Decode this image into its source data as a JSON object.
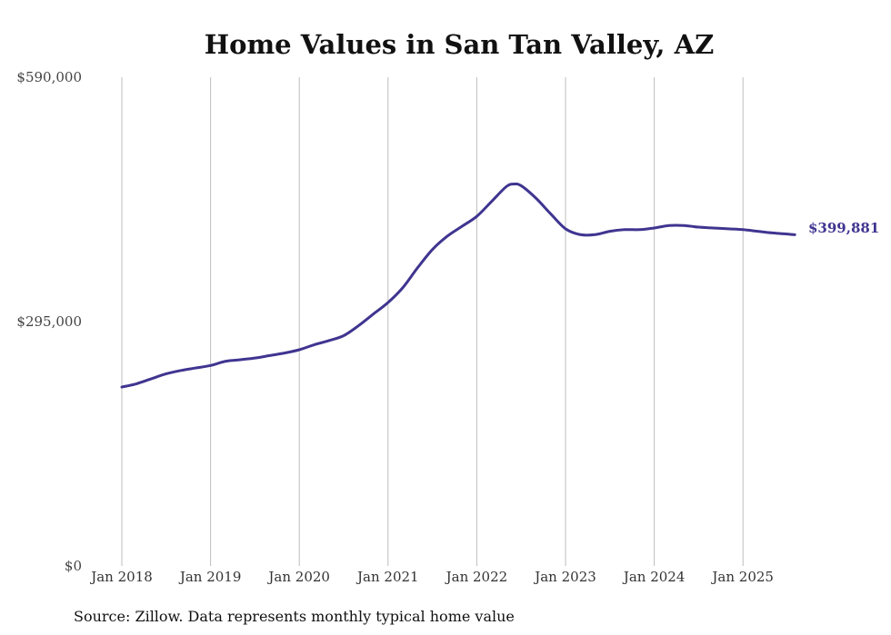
{
  "chart_data": {
    "type": "line",
    "title": "Home Values in San Tan Valley, AZ",
    "source": "Source: Zillow. Data represents monthly typical home value",
    "xlabel": "",
    "ylabel": "",
    "ylim": [
      0,
      590000
    ],
    "xlim": [
      "2018-01",
      "2025-08"
    ],
    "y_ticks": [
      {
        "value": 0,
        "label": "$0"
      },
      {
        "value": 295000,
        "label": "$295,000"
      },
      {
        "value": 590000,
        "label": "$590,000"
      }
    ],
    "x_ticks": [
      {
        "value": "2018-01",
        "label": "Jan 2018"
      },
      {
        "value": "2019-01",
        "label": "Jan 2019"
      },
      {
        "value": "2020-01",
        "label": "Jan 2020"
      },
      {
        "value": "2021-01",
        "label": "Jan 2021"
      },
      {
        "value": "2022-01",
        "label": "Jan 2022"
      },
      {
        "value": "2023-01",
        "label": "Jan 2023"
      },
      {
        "value": "2024-01",
        "label": "Jan 2024"
      },
      {
        "value": "2025-01",
        "label": "Jan 2025"
      }
    ],
    "grid": "vertical",
    "color": "#3f3590",
    "end_label": "$399,881",
    "series": [
      {
        "x": [
          "2018-01",
          "2018-03",
          "2018-05",
          "2018-07",
          "2018-09",
          "2018-11",
          "2019-01",
          "2019-03",
          "2019-05",
          "2019-07",
          "2019-09",
          "2019-11",
          "2020-01",
          "2020-03",
          "2020-05",
          "2020-07",
          "2020-09",
          "2020-11",
          "2021-01",
          "2021-03",
          "2021-05",
          "2021-07",
          "2021-09",
          "2021-11",
          "2022-01",
          "2022-03",
          "2022-05",
          "2022-06",
          "2022-07",
          "2022-09",
          "2022-11",
          "2023-01",
          "2023-03",
          "2023-05",
          "2023-07",
          "2023-09",
          "2023-11",
          "2024-01",
          "2024-03",
          "2024-05",
          "2024-07",
          "2024-09",
          "2024-11",
          "2025-01",
          "2025-03",
          "2025-05",
          "2025-08"
        ],
        "values": [
          216000,
          220000,
          226000,
          232000,
          236000,
          239000,
          242000,
          247000,
          249000,
          251000,
          254000,
          257000,
          261000,
          267000,
          272000,
          278000,
          290000,
          304000,
          318000,
          336000,
          360000,
          382000,
          398000,
          410000,
          422000,
          440000,
          458000,
          461000,
          459000,
          444000,
          425000,
          407000,
          400000,
          400000,
          404000,
          406000,
          406000,
          408000,
          411000,
          411000,
          409000,
          408000,
          407000,
          406000,
          404000,
          402000,
          399881
        ]
      }
    ]
  }
}
